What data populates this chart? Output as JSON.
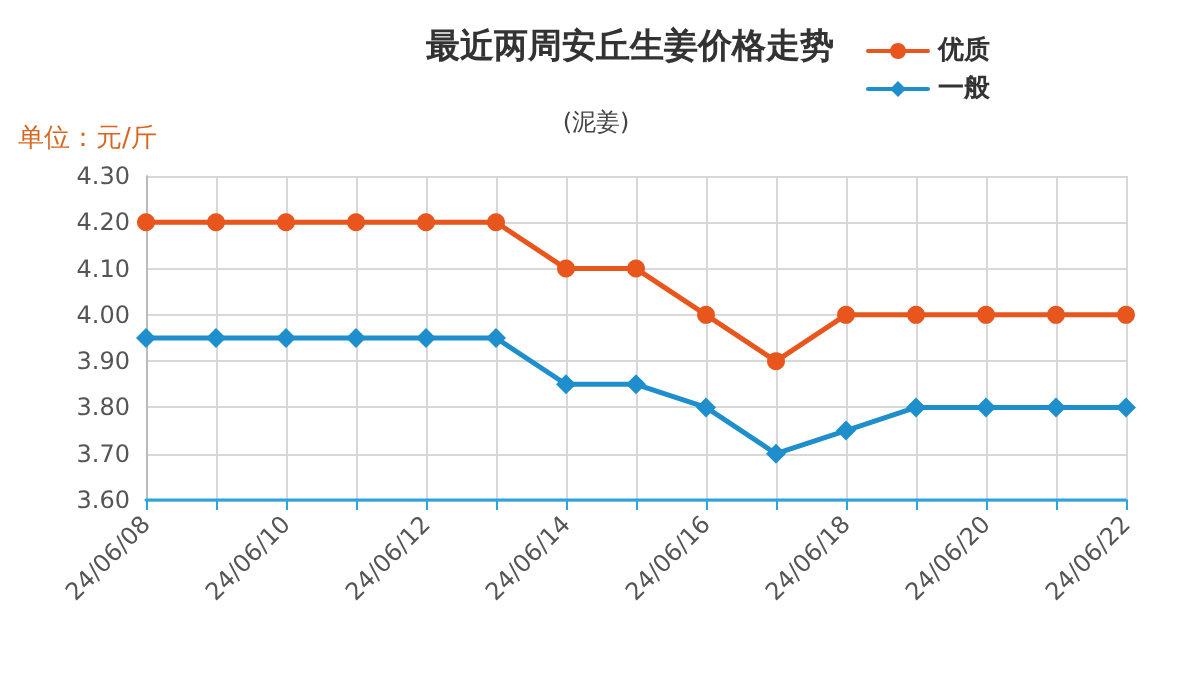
{
  "chart_data": {
    "type": "line",
    "title": "最近两周安丘生姜价格走势",
    "subtitle": "(泥姜)",
    "ylabel": "单位：元/斤",
    "categories": [
      "24/06/08",
      null,
      "24/06/10",
      null,
      "24/06/12",
      null,
      "24/06/14",
      null,
      "24/06/16",
      null,
      "24/06/18",
      null,
      "24/06/20",
      null,
      "24/06/22"
    ],
    "series": [
      {
        "name": "优质",
        "color": "#e8561e",
        "marker": "circle",
        "values": [
          4.2,
          4.2,
          4.2,
          4.2,
          4.2,
          4.2,
          4.1,
          4.1,
          4.0,
          3.9,
          4.0,
          4.0,
          4.0,
          4.0,
          4.0
        ]
      },
      {
        "name": "一般",
        "color": "#1e8fcc",
        "marker": "diamond",
        "values": [
          3.95,
          3.95,
          3.95,
          3.95,
          3.95,
          3.95,
          3.85,
          3.85,
          3.8,
          3.7,
          3.75,
          3.8,
          3.8,
          3.8,
          3.8
        ]
      }
    ],
    "ylim": [
      3.6,
      4.3
    ],
    "yticks": [
      {
        "value": 3.6,
        "label": "3.60"
      },
      {
        "value": 3.7,
        "label": "3.70"
      },
      {
        "value": 3.8,
        "label": "3.80"
      },
      {
        "value": 3.9,
        "label": "3.90"
      },
      {
        "value": 4.0,
        "label": "4.00"
      },
      {
        "value": 4.1,
        "label": "4.10"
      },
      {
        "value": 4.2,
        "label": "4.20"
      },
      {
        "value": 4.3,
        "label": "4.30"
      }
    ],
    "grid": true,
    "legend": "top right",
    "line_style": "solid"
  }
}
